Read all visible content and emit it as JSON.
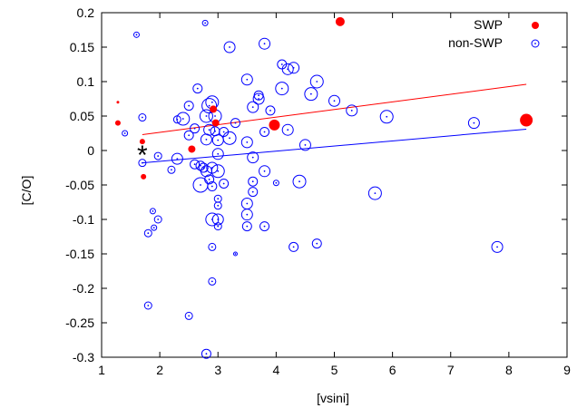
{
  "chart_data": {
    "type": "scatter",
    "xlabel": "[vsini]",
    "ylabel": "[C/O]",
    "xlim": [
      1,
      9
    ],
    "ylim": [
      -0.3,
      0.2
    ],
    "xticks": [
      1,
      2,
      3,
      4,
      5,
      6,
      7,
      8,
      9
    ],
    "yticks": [
      -0.3,
      -0.25,
      -0.2,
      -0.15,
      -0.1,
      -0.05,
      0,
      0.05,
      0.1,
      0.15,
      0.2
    ],
    "legend_position": "top-right",
    "grid": false,
    "series": [
      {
        "name": "SWP",
        "color": "#ff0000",
        "marker": "filled-circle",
        "points": [
          {
            "x": 1.28,
            "y": 0.07,
            "s": 1.5
          },
          {
            "x": 1.28,
            "y": 0.04,
            "s": 3
          },
          {
            "x": 1.7,
            "y": 0.013,
            "s": 3
          },
          {
            "x": 1.72,
            "y": -0.038,
            "s": 3
          },
          {
            "x": 2.55,
            "y": 0.002,
            "s": 4
          },
          {
            "x": 2.92,
            "y": 0.06,
            "s": 4
          },
          {
            "x": 2.96,
            "y": 0.04,
            "s": 4
          },
          {
            "x": 3.97,
            "y": 0.037,
            "s": 6
          },
          {
            "x": 5.1,
            "y": 0.187,
            "s": 5
          },
          {
            "x": 8.3,
            "y": 0.044,
            "s": 7
          }
        ],
        "fit_line": {
          "x": [
            1.7,
            8.3
          ],
          "y": [
            0.023,
            0.096
          ]
        }
      },
      {
        "name": "non-SWP",
        "color": "#0000ff",
        "marker": "open-circle-dot",
        "points": [
          {
            "x": 1.4,
            "y": 0.025,
            "s": 3
          },
          {
            "x": 1.6,
            "y": 0.168,
            "s": 3
          },
          {
            "x": 1.7,
            "y": 0.048,
            "s": 4
          },
          {
            "x": 1.7,
            "y": -0.018,
            "s": 4
          },
          {
            "x": 1.8,
            "y": -0.12,
            "s": 4
          },
          {
            "x": 1.8,
            "y": -0.225,
            "s": 4
          },
          {
            "x": 1.88,
            "y": -0.088,
            "s": 3
          },
          {
            "x": 1.9,
            "y": -0.112,
            "s": 3
          },
          {
            "x": 1.97,
            "y": -0.008,
            "s": 4
          },
          {
            "x": 1.97,
            "y": -0.1,
            "s": 4
          },
          {
            "x": 2.2,
            "y": -0.028,
            "s": 4
          },
          {
            "x": 2.3,
            "y": -0.012,
            "s": 6
          },
          {
            "x": 2.3,
            "y": 0.045,
            "s": 4
          },
          {
            "x": 2.4,
            "y": 0.046,
            "s": 7
          },
          {
            "x": 2.5,
            "y": 0.065,
            "s": 5
          },
          {
            "x": 2.5,
            "y": 0.022,
            "s": 5
          },
          {
            "x": 2.5,
            "y": -0.24,
            "s": 4
          },
          {
            "x": 2.6,
            "y": -0.02,
            "s": 5
          },
          {
            "x": 2.6,
            "y": 0.032,
            "s": 5
          },
          {
            "x": 2.65,
            "y": 0.09,
            "s": 5
          },
          {
            "x": 2.7,
            "y": -0.022,
            "s": 5
          },
          {
            "x": 2.7,
            "y": -0.05,
            "s": 8
          },
          {
            "x": 2.75,
            "y": -0.025,
            "s": 5
          },
          {
            "x": 2.78,
            "y": 0.185,
            "s": 3
          },
          {
            "x": 2.8,
            "y": 0.05,
            "s": 7
          },
          {
            "x": 2.8,
            "y": 0.016,
            "s": 6
          },
          {
            "x": 2.8,
            "y": -0.03,
            "s": 6
          },
          {
            "x": 2.8,
            "y": -0.295,
            "s": 5
          },
          {
            "x": 2.85,
            "y": 0.065,
            "s": 8
          },
          {
            "x": 2.85,
            "y": 0.03,
            "s": 6
          },
          {
            "x": 2.85,
            "y": -0.042,
            "s": 5
          },
          {
            "x": 2.9,
            "y": 0.07,
            "s": 7
          },
          {
            "x": 2.9,
            "y": -0.025,
            "s": 6
          },
          {
            "x": 2.9,
            "y": -0.052,
            "s": 5
          },
          {
            "x": 2.9,
            "y": -0.1,
            "s": 7
          },
          {
            "x": 2.9,
            "y": -0.14,
            "s": 4
          },
          {
            "x": 2.9,
            "y": -0.19,
            "s": 4
          },
          {
            "x": 2.95,
            "y": 0.05,
            "s": 7
          },
          {
            "x": 2.95,
            "y": 0.028,
            "s": 5
          },
          {
            "x": 3.0,
            "y": 0.015,
            "s": 6
          },
          {
            "x": 3.0,
            "y": -0.005,
            "s": 6
          },
          {
            "x": 3.0,
            "y": -0.03,
            "s": 7
          },
          {
            "x": 3.0,
            "y": -0.1,
            "s": 6
          },
          {
            "x": 3.0,
            "y": -0.07,
            "s": 4
          },
          {
            "x": 3.0,
            "y": -0.08,
            "s": 4
          },
          {
            "x": 3.0,
            "y": -0.11,
            "s": 4
          },
          {
            "x": 3.1,
            "y": 0.027,
            "s": 5
          },
          {
            "x": 3.1,
            "y": -0.048,
            "s": 5
          },
          {
            "x": 3.2,
            "y": 0.15,
            "s": 6
          },
          {
            "x": 3.2,
            "y": 0.018,
            "s": 7
          },
          {
            "x": 3.3,
            "y": 0.04,
            "s": 5
          },
          {
            "x": 3.3,
            "y": -0.15,
            "s": 2
          },
          {
            "x": 3.5,
            "y": 0.103,
            "s": 6
          },
          {
            "x": 3.5,
            "y": 0.012,
            "s": 6
          },
          {
            "x": 3.5,
            "y": -0.077,
            "s": 6
          },
          {
            "x": 3.5,
            "y": -0.093,
            "s": 6
          },
          {
            "x": 3.5,
            "y": -0.11,
            "s": 5
          },
          {
            "x": 3.6,
            "y": 0.063,
            "s": 6
          },
          {
            "x": 3.6,
            "y": -0.01,
            "s": 6
          },
          {
            "x": 3.6,
            "y": -0.045,
            "s": 5
          },
          {
            "x": 3.6,
            "y": -0.06,
            "s": 5
          },
          {
            "x": 3.7,
            "y": 0.075,
            "s": 6
          },
          {
            "x": 3.7,
            "y": 0.08,
            "s": 5
          },
          {
            "x": 3.8,
            "y": 0.155,
            "s": 6
          },
          {
            "x": 3.8,
            "y": 0.027,
            "s": 5
          },
          {
            "x": 3.8,
            "y": -0.03,
            "s": 6
          },
          {
            "x": 3.8,
            "y": -0.11,
            "s": 5
          },
          {
            "x": 3.9,
            "y": 0.058,
            "s": 5
          },
          {
            "x": 4.0,
            "y": -0.047,
            "s": 3
          },
          {
            "x": 4.1,
            "y": 0.09,
            "s": 7
          },
          {
            "x": 4.1,
            "y": 0.125,
            "s": 5
          },
          {
            "x": 4.2,
            "y": 0.118,
            "s": 6
          },
          {
            "x": 4.2,
            "y": 0.03,
            "s": 6
          },
          {
            "x": 4.3,
            "y": 0.12,
            "s": 6
          },
          {
            "x": 4.3,
            "y": -0.14,
            "s": 5
          },
          {
            "x": 4.4,
            "y": -0.045,
            "s": 7
          },
          {
            "x": 4.5,
            "y": 0.008,
            "s": 6
          },
          {
            "x": 4.6,
            "y": 0.082,
            "s": 7
          },
          {
            "x": 4.7,
            "y": 0.1,
            "s": 7
          },
          {
            "x": 4.7,
            "y": -0.135,
            "s": 5
          },
          {
            "x": 5.0,
            "y": 0.072,
            "s": 6
          },
          {
            "x": 5.3,
            "y": 0.058,
            "s": 6
          },
          {
            "x": 5.7,
            "y": -0.062,
            "s": 7
          },
          {
            "x": 5.9,
            "y": 0.049,
            "s": 7
          },
          {
            "x": 7.4,
            "y": 0.04,
            "s": 6
          },
          {
            "x": 7.8,
            "y": -0.14,
            "s": 6
          }
        ],
        "fit_line": {
          "x": [
            1.7,
            8.3
          ],
          "y": [
            -0.018,
            0.031
          ]
        }
      }
    ],
    "annotation": {
      "symbol": "*",
      "x": 1.7,
      "y": 0.0
    }
  }
}
